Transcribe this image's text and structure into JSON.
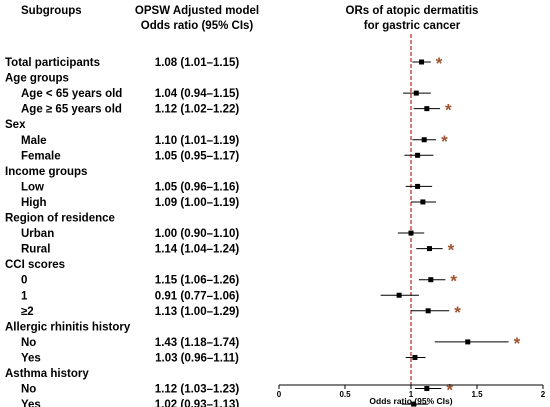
{
  "header": {
    "subgroups": "Subgroups",
    "model_line1": "OPSW Adjusted model",
    "model_line2": "Odds ratio (95% CIs)",
    "plot_title_line1": "ORs of atopic dermatitis",
    "plot_title_line2": "for gastric cancer"
  },
  "chart_data": {
    "type": "forest",
    "xlabel": "Odds ratio (95% CIs)",
    "xlim": [
      0,
      2
    ],
    "xticks": [
      0,
      0.5,
      1,
      1.5,
      2
    ],
    "xtick_labels": [
      "0",
      "0.5",
      "1",
      "1.5",
      "2"
    ],
    "reference_line": 1,
    "significance_marker": "*",
    "colors": {
      "point": "#000000",
      "ci": "#000000",
      "reference": "#c0392b",
      "asterisk": "#a0522d"
    },
    "rows": [
      {
        "type": "entry",
        "label": "Total participants",
        "bold": true,
        "indent": 0,
        "text": "1.08 (1.01–1.15)",
        "or": 1.08,
        "lo": 1.01,
        "hi": 1.15,
        "sig": true
      },
      {
        "type": "header",
        "label": "Age groups"
      },
      {
        "type": "entry",
        "label": "Age < 65 years old",
        "indent": 1,
        "text": "1.04 (0.94–1.15)",
        "or": 1.04,
        "lo": 0.94,
        "hi": 1.15,
        "sig": false
      },
      {
        "type": "entry",
        "label": "Age ≥ 65 years old",
        "indent": 1,
        "text": "1.12 (1.02–1.22)",
        "or": 1.12,
        "lo": 1.02,
        "hi": 1.22,
        "sig": true
      },
      {
        "type": "header",
        "label": "Sex"
      },
      {
        "type": "entry",
        "label": "Male",
        "indent": 1,
        "text": "1.10 (1.01–1.19)",
        "or": 1.1,
        "lo": 1.01,
        "hi": 1.19,
        "sig": true
      },
      {
        "type": "entry",
        "label": "Female",
        "indent": 1,
        "text": "1.05 (0.95–1.17)",
        "or": 1.05,
        "lo": 0.95,
        "hi": 1.17,
        "sig": false
      },
      {
        "type": "header",
        "label": "Income groups"
      },
      {
        "type": "entry",
        "label": "Low",
        "indent": 1,
        "text": "1.05 (0.96–1.16)",
        "or": 1.05,
        "lo": 0.96,
        "hi": 1.16,
        "sig": false
      },
      {
        "type": "entry",
        "label": "High",
        "indent": 1,
        "text": "1.09 (1.00–1.19)",
        "or": 1.09,
        "lo": 1.0,
        "hi": 1.19,
        "sig": false
      },
      {
        "type": "header",
        "label": "Region of residence"
      },
      {
        "type": "entry",
        "label": "Urban",
        "indent": 1,
        "text": "1.00 (0.90–1.10)",
        "or": 1.0,
        "lo": 0.9,
        "hi": 1.1,
        "sig": false
      },
      {
        "type": "entry",
        "label": "Rural",
        "indent": 1,
        "text": "1.14 (1.04–1.24)",
        "or": 1.14,
        "lo": 1.04,
        "hi": 1.24,
        "sig": true
      },
      {
        "type": "header",
        "label": "CCI scores"
      },
      {
        "type": "entry",
        "label": "0",
        "indent": 1,
        "text": "1.15 (1.06–1.26)",
        "or": 1.15,
        "lo": 1.06,
        "hi": 1.26,
        "sig": true
      },
      {
        "type": "entry",
        "label": "1",
        "indent": 1,
        "text": "0.91 (0.77–1.06)",
        "or": 0.91,
        "lo": 0.77,
        "hi": 1.06,
        "sig": false
      },
      {
        "type": "entry",
        "label": "≥2",
        "indent": 1,
        "text": "1.13 (1.00–1.29)",
        "or": 1.13,
        "lo": 1.0,
        "hi": 1.29,
        "sig": true
      },
      {
        "type": "header",
        "label": "Allergic rhinitis history"
      },
      {
        "type": "entry",
        "label": "No",
        "indent": 1,
        "text": "1.43 (1.18–1.74)",
        "or": 1.43,
        "lo": 1.18,
        "hi": 1.74,
        "sig": true
      },
      {
        "type": "entry",
        "label": "Yes",
        "indent": 1,
        "text": "1.03 (0.96–1.11)",
        "or": 1.03,
        "lo": 0.96,
        "hi": 1.11,
        "sig": false
      },
      {
        "type": "header",
        "label": "Asthma history"
      },
      {
        "type": "entry",
        "label": "No",
        "indent": 1,
        "text": "1.12 (1.03–1.23)",
        "or": 1.12,
        "lo": 1.03,
        "hi": 1.23,
        "sig": true
      },
      {
        "type": "entry",
        "label": "Yes",
        "indent": 1,
        "text": "1.02 (0.93–1.13)",
        "or": 1.02,
        "lo": 0.93,
        "hi": 1.13,
        "sig": false
      }
    ]
  }
}
